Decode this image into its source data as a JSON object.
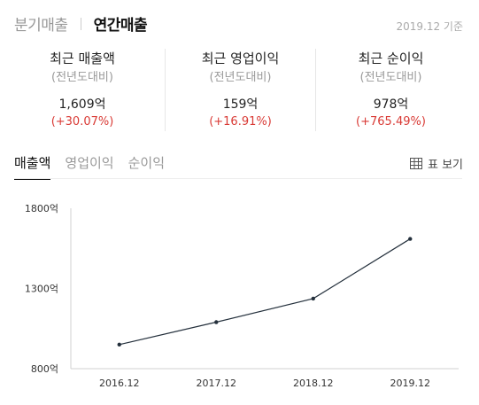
{
  "header": {
    "tabs": [
      {
        "label": "분기매출",
        "active": false
      },
      {
        "label": "연간매출",
        "active": true
      }
    ],
    "as_of": "2019.12 기준"
  },
  "metrics": [
    {
      "title": "최근 매출액",
      "sub": "(전년도대비)",
      "value": "1,609억",
      "change": "(+30.07%)"
    },
    {
      "title": "최근 영업이익",
      "sub": "(전년도대비)",
      "value": "159억",
      "change": "(+16.91%)"
    },
    {
      "title": "최근 순이익",
      "sub": "(전년도대비)",
      "value": "978억",
      "change": "(+765.49%)"
    }
  ],
  "sub_tabs": [
    {
      "label": "매출액",
      "active": true
    },
    {
      "label": "영업이익",
      "active": false
    },
    {
      "label": "순이익",
      "active": false
    }
  ],
  "table_toggle_label": "표 보기",
  "colors": {
    "accent": "#111111",
    "positive_change": "#d93a35",
    "line": "#24303c"
  },
  "chart_data": {
    "type": "line",
    "categories": [
      "2016.12",
      "2017.12",
      "2018.12",
      "2019.12"
    ],
    "values": [
      950,
      1090,
      1237,
      1609
    ],
    "ylim": [
      800,
      1800
    ],
    "yticks": [
      800,
      1300,
      1800
    ],
    "ytick_labels": [
      "800억",
      "1300억",
      "1800억"
    ],
    "grid": false
  }
}
